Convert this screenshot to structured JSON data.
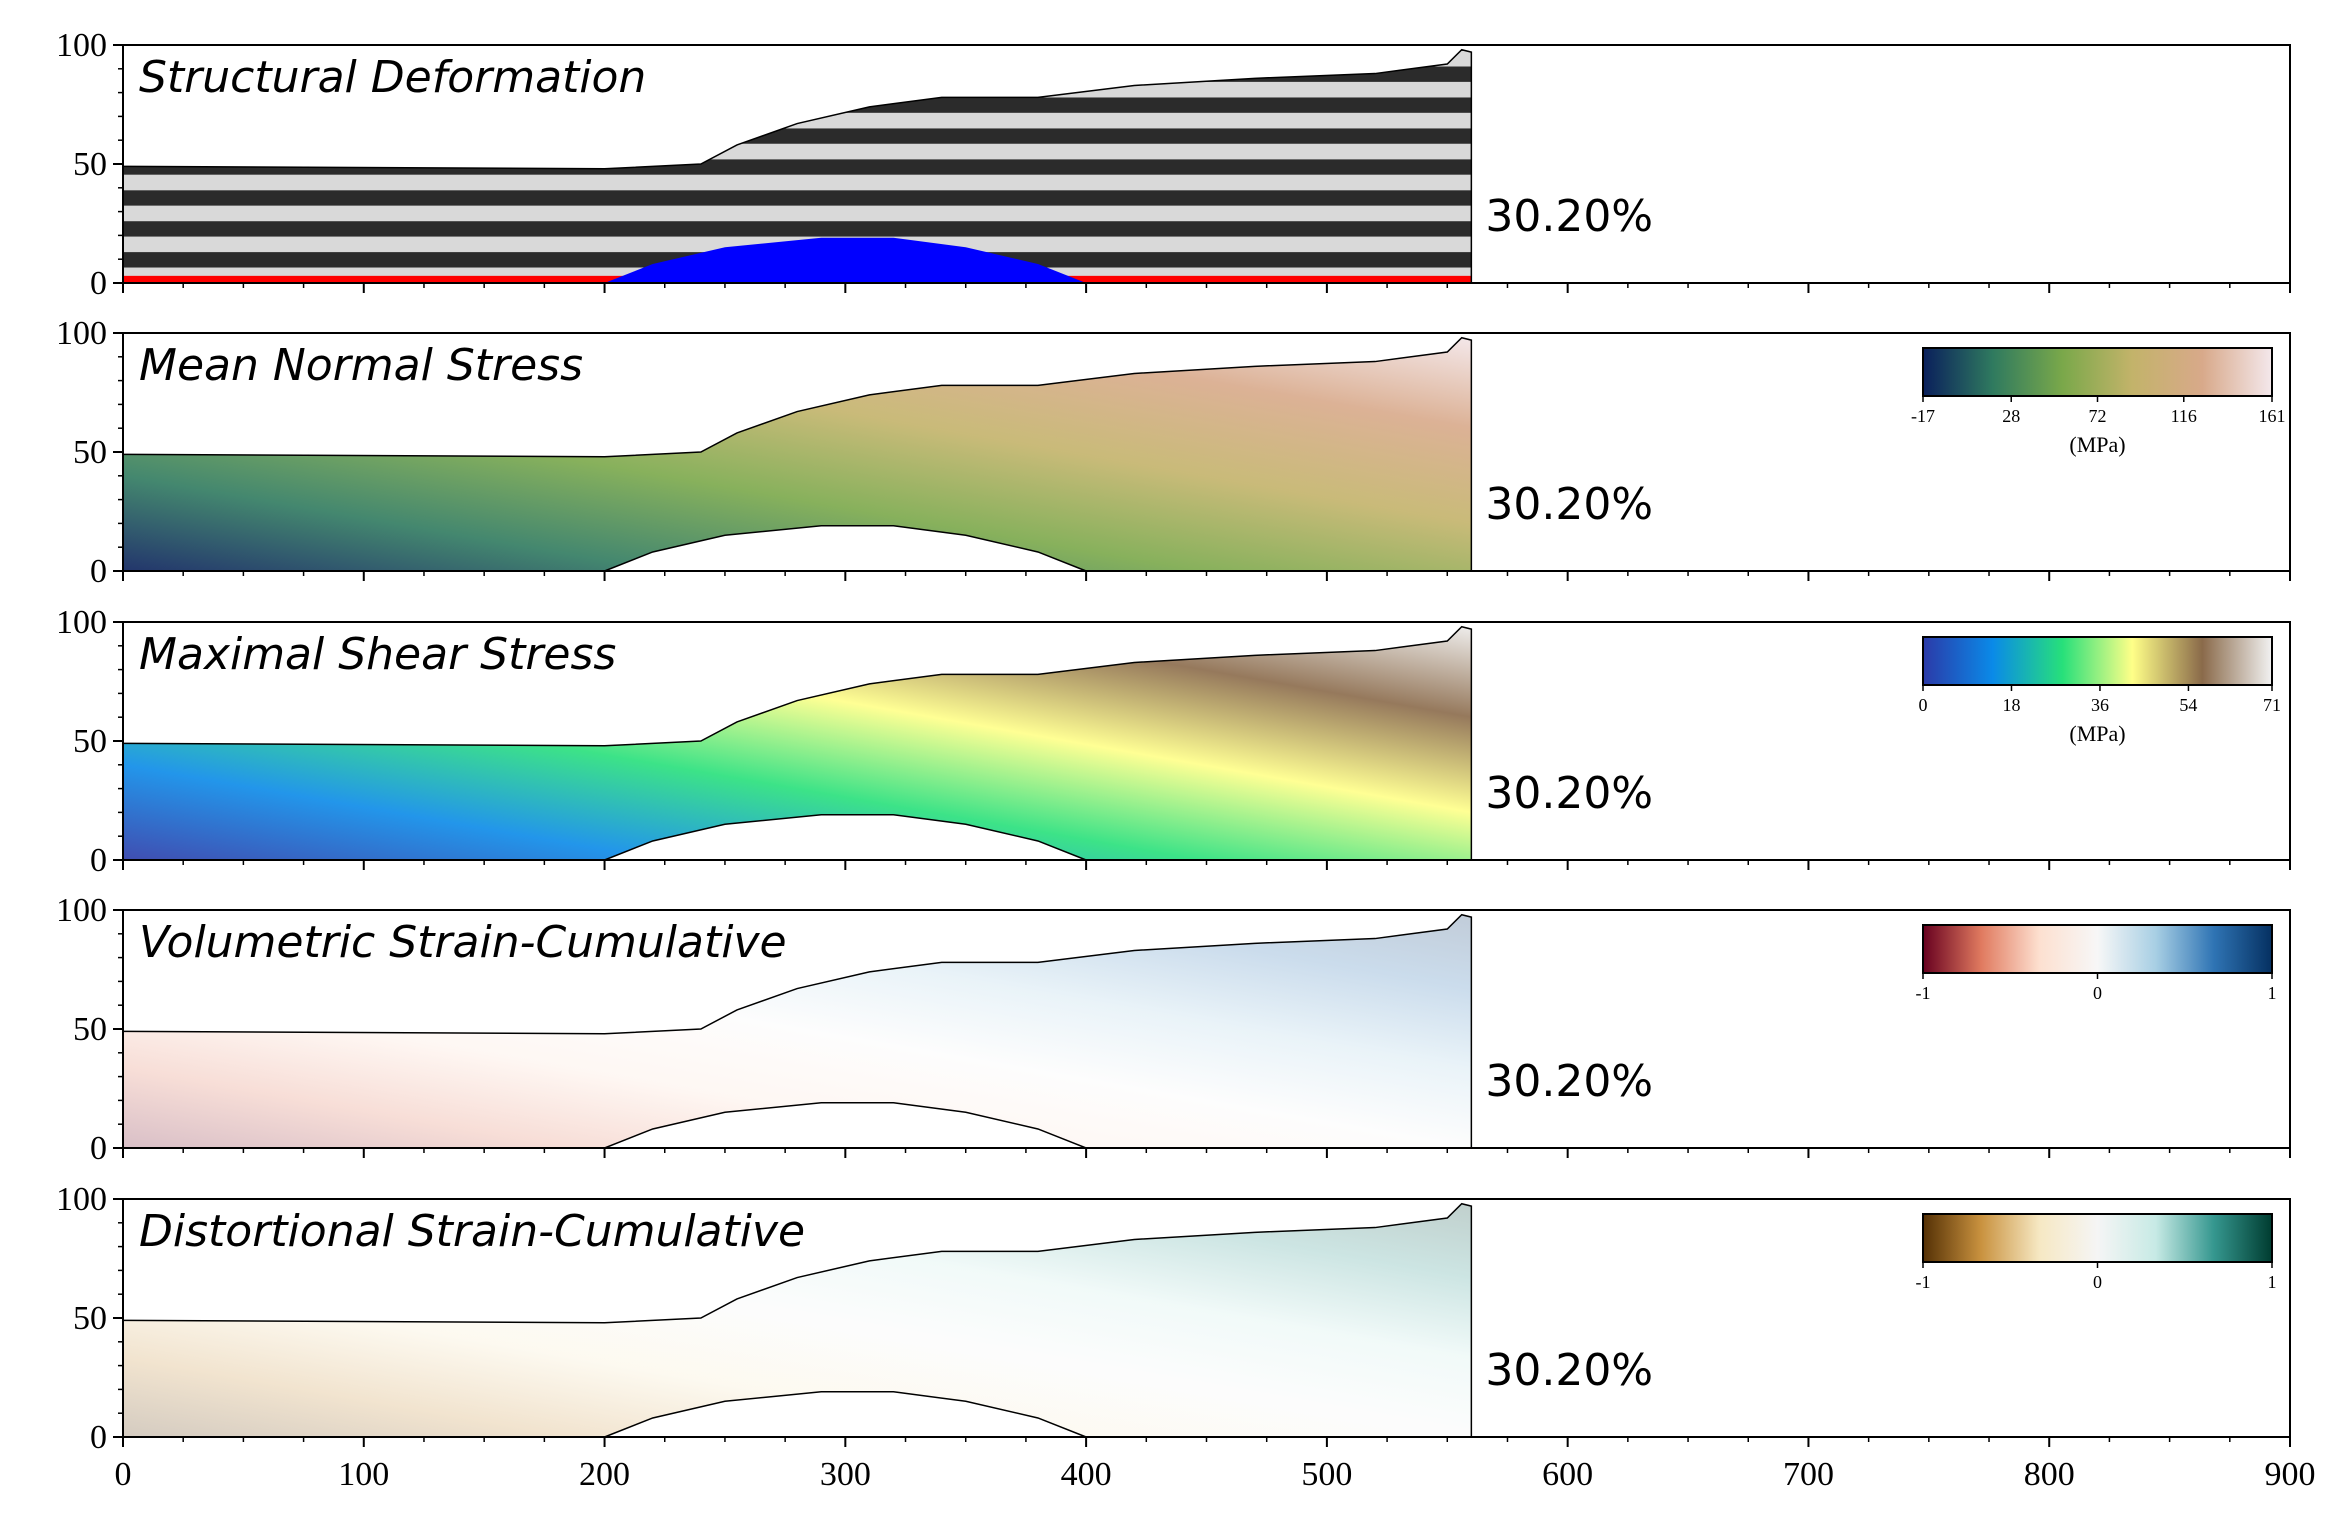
{
  "chart_data": [
    {
      "type": "heatmap",
      "title": "Structural Deformation",
      "annotation": "30.20%",
      "ylim": [
        0,
        100
      ],
      "xlim": [
        0,
        900
      ],
      "yticks": [
        "0",
        "50",
        "100"
      ],
      "legend": null,
      "colors": {
        "layer_dark": "#2b2b2b",
        "layer_light": "#d9d9d9",
        "salt_dome": "#0000ff",
        "detachment": "#ff0000"
      }
    },
    {
      "type": "heatmap",
      "title": "Mean Normal Stress",
      "annotation": "30.20%",
      "ylim": [
        0,
        100
      ],
      "xlim": [
        0,
        900
      ],
      "yticks": [
        "0",
        "50",
        "100"
      ],
      "colorbar": {
        "ticks": [
          "-17",
          "28",
          "72",
          "116",
          "161"
        ],
        "unit": "(MPa)",
        "range": [
          -17,
          161
        ],
        "colors": [
          "#0a1f5c",
          "#2f7a5f",
          "#7aa84a",
          "#c3b36a",
          "#d8a98a",
          "#f4e8ec"
        ]
      }
    },
    {
      "type": "heatmap",
      "title": "Maximal Shear Stress",
      "annotation": "30.20%",
      "ylim": [
        0,
        100
      ],
      "xlim": [
        0,
        900
      ],
      "yticks": [
        "0",
        "50",
        "100"
      ],
      "colorbar": {
        "ticks": [
          "0",
          "18",
          "36",
          "54",
          "71"
        ],
        "unit": "(MPa)",
        "range": [
          0,
          71
        ],
        "colors": [
          "#2b3aa8",
          "#0a8ae8",
          "#27e07a",
          "#ffff88",
          "#8a6a4a",
          "#f2f2f2"
        ]
      }
    },
    {
      "type": "heatmap",
      "title": "Volumetric Strain-Cumulative",
      "annotation": "30.20%",
      "ylim": [
        0,
        100
      ],
      "xlim": [
        0,
        900
      ],
      "yticks": [
        "0",
        "50",
        "100"
      ],
      "colorbar": {
        "ticks": [
          "-1",
          "0",
          "1"
        ],
        "unit": "",
        "range": [
          -1,
          1
        ],
        "colors": [
          "#67001f",
          "#e07a5f",
          "#fde0d0",
          "#f7f7f7",
          "#a8cfe4",
          "#2f74b4",
          "#053061"
        ]
      }
    },
    {
      "type": "heatmap",
      "title": "Distortional Strain-Cumulative",
      "annotation": "30.20%",
      "ylim": [
        0,
        100
      ],
      "xlim": [
        0,
        900
      ],
      "yticks": [
        "0",
        "50",
        "100"
      ],
      "xticks": [
        "0",
        "100",
        "200",
        "300",
        "400",
        "500",
        "600",
        "700",
        "800",
        "900"
      ],
      "colorbar": {
        "ticks": [
          "-1",
          "0",
          "1"
        ],
        "unit": "",
        "range": [
          -1,
          1
        ],
        "colors": [
          "#543005",
          "#c9923f",
          "#f6e8c3",
          "#f5f5f5",
          "#c7eae5",
          "#35978f",
          "#003c30"
        ]
      }
    }
  ]
}
